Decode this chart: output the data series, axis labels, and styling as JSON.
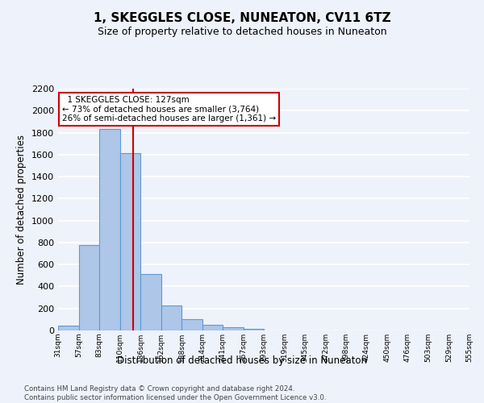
{
  "title": "1, SKEGGLES CLOSE, NUNEATON, CV11 6TZ",
  "subtitle": "Size of property relative to detached houses in Nuneaton",
  "xlabel": "Distribution of detached houses by size in Nuneaton",
  "ylabel": "Number of detached properties",
  "footer_line1": "Contains HM Land Registry data © Crown copyright and database right 2024.",
  "footer_line2": "Contains public sector information licensed under the Open Government Licence v3.0.",
  "bins": [
    "31sqm",
    "57sqm",
    "83sqm",
    "110sqm",
    "136sqm",
    "162sqm",
    "188sqm",
    "214sqm",
    "241sqm",
    "267sqm",
    "293sqm",
    "319sqm",
    "345sqm",
    "372sqm",
    "398sqm",
    "424sqm",
    "450sqm",
    "476sqm",
    "503sqm",
    "529sqm",
    "555sqm"
  ],
  "values": [
    45,
    775,
    1830,
    1610,
    515,
    230,
    105,
    55,
    30,
    18,
    0,
    0,
    0,
    0,
    0,
    0,
    0,
    0,
    0,
    0
  ],
  "bar_color": "#aec6e8",
  "bar_edge_color": "#5b9bd5",
  "annotation_line_label": "1 SKEGGLES CLOSE: 127sqm",
  "annotation_pct_smaller": "73% of detached houses are smaller (3,764)",
  "annotation_pct_larger": "26% of semi-detached houses are larger (1,361)",
  "vline_color": "#cc0000",
  "ylim": [
    0,
    2200
  ],
  "yticks": [
    0,
    200,
    400,
    600,
    800,
    1000,
    1200,
    1400,
    1600,
    1800,
    2000,
    2200
  ],
  "bg_color": "#eef2fa",
  "grid_color": "#ffffff",
  "annotation_box_color": "#ffffff",
  "annotation_box_edge": "#cc0000",
  "title_fontsize": 11,
  "subtitle_fontsize": 9
}
